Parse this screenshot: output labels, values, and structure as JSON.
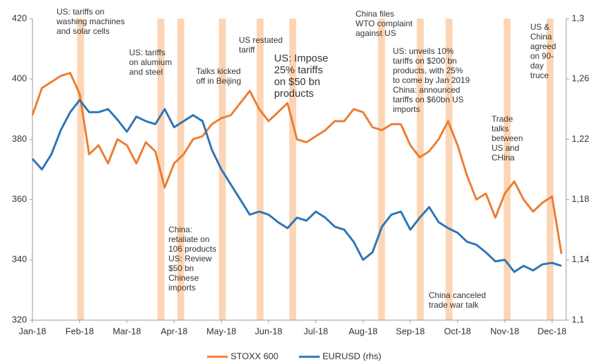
{
  "chart_data": {
    "type": "line",
    "x": [
      0,
      0.2,
      0.4,
      0.6,
      0.8,
      1,
      1.2,
      1.4,
      1.6,
      1.8,
      2,
      2.2,
      2.4,
      2.6,
      2.8,
      3,
      3.2,
      3.4,
      3.6,
      3.8,
      4,
      4.2,
      4.4,
      4.6,
      4.8,
      5,
      5.2,
      5.4,
      5.6,
      5.8,
      6,
      6.2,
      6.4,
      6.6,
      6.8,
      7,
      7.2,
      7.4,
      7.6,
      7.8,
      8,
      8.2,
      8.4,
      8.6,
      8.8,
      9,
      9.2,
      9.4,
      9.6,
      9.8,
      10,
      10.2,
      10.4,
      10.6,
      10.8,
      11,
      11.2
    ],
    "series": [
      {
        "name": "STOXX 600",
        "color": "#ed7d31",
        "values": [
          388,
          397,
          399,
          401,
          402,
          395,
          375,
          378,
          372,
          380,
          378,
          372,
          379,
          376,
          364,
          372,
          375,
          380,
          381,
          385,
          387,
          388,
          392,
          396,
          390,
          386,
          389,
          392,
          380,
          379,
          381,
          383,
          386,
          386,
          390,
          389,
          384,
          383,
          385,
          385,
          378,
          374,
          376,
          380,
          386,
          378,
          368,
          360,
          362,
          354,
          362,
          366,
          360,
          356,
          359,
          361,
          342
        ]
      },
      {
        "name": "EURUSD (rhs)",
        "color": "#2e75b6",
        "axis": "y2",
        "values": [
          1.207,
          1.2,
          1.21,
          1.226,
          1.238,
          1.246,
          1.238,
          1.238,
          1.24,
          1.233,
          1.225,
          1.235,
          1.232,
          1.23,
          1.24,
          1.228,
          1.232,
          1.236,
          1.232,
          1.213,
          1.2,
          1.19,
          1.18,
          1.17,
          1.172,
          1.17,
          1.165,
          1.161,
          1.168,
          1.166,
          1.172,
          1.168,
          1.162,
          1.16,
          1.152,
          1.14,
          1.145,
          1.162,
          1.17,
          1.172,
          1.16,
          1.168,
          1.175,
          1.165,
          1.161,
          1.158,
          1.152,
          1.15,
          1.145,
          1.139,
          1.14,
          1.132,
          1.136,
          1.133,
          1.137,
          1.138,
          1.136
        ]
      }
    ],
    "xlim": [
      0,
      11.3
    ],
    "xticks": [
      {
        "value": 0,
        "label": "Jan-18"
      },
      {
        "value": 1,
        "label": "Feb-18"
      },
      {
        "value": 2,
        "label": "Mar-18"
      },
      {
        "value": 3,
        "label": "Apr-18"
      },
      {
        "value": 4,
        "label": "May-18"
      },
      {
        "value": 5,
        "label": "Jun-18"
      },
      {
        "value": 6,
        "label": "Jul-18"
      },
      {
        "value": 7,
        "label": "Aug-18"
      },
      {
        "value": 8,
        "label": "Sep-18"
      },
      {
        "value": 9,
        "label": "Oct-18"
      },
      {
        "value": 10,
        "label": "Nov-18"
      },
      {
        "value": 11,
        "label": "Dec-18"
      }
    ],
    "ylim": [
      320,
      420
    ],
    "yticks": [
      320,
      340,
      360,
      380,
      400,
      420
    ],
    "y2lim": [
      1.1,
      1.3
    ],
    "y2ticks": [
      {
        "value": 1.1,
        "label": "1,1"
      },
      {
        "value": 1.14,
        "label": "1,14"
      },
      {
        "value": 1.18,
        "label": "1,18"
      },
      {
        "value": 1.22,
        "label": "1,22"
      },
      {
        "value": 1.26,
        "label": "1,26"
      },
      {
        "value": 1.3,
        "label": "1,3"
      }
    ],
    "events": [
      1.02,
      2.72,
      3.14,
      4.02,
      4.82,
      5.51,
      7.39,
      8.21,
      8.82,
      10.05,
      10.96
    ],
    "event_color": "#fbd5b5",
    "annotations": [
      "US: tariffs on\nwashing machines\nand solar cells",
      "US: tariffs\non alumium\nand steel",
      "Talks kicked\noff in Beijing",
      "US restated\ntariff",
      "US: Impose\n25% tariffs\non $50 bn\nproducts",
      "China files\nWTO complaint\nagainst US",
      "US: unveils 10%\ntariffs on $200 bn\nproducts, with 25%\nto come by Jan 2019\nChina: announced\ntariffs on $60bn US\nimports",
      "Trade\ntalks\nbetween\nUS and\nCHina",
      "US &\nChina\nagreed\non 90-\nday\ntruce",
      "China:\nretaliate on\n106 products\nUS: Review\n$50 bn\nChinese\nimports",
      "China canceled\ntrade war talk"
    ],
    "legend": "bottom"
  }
}
